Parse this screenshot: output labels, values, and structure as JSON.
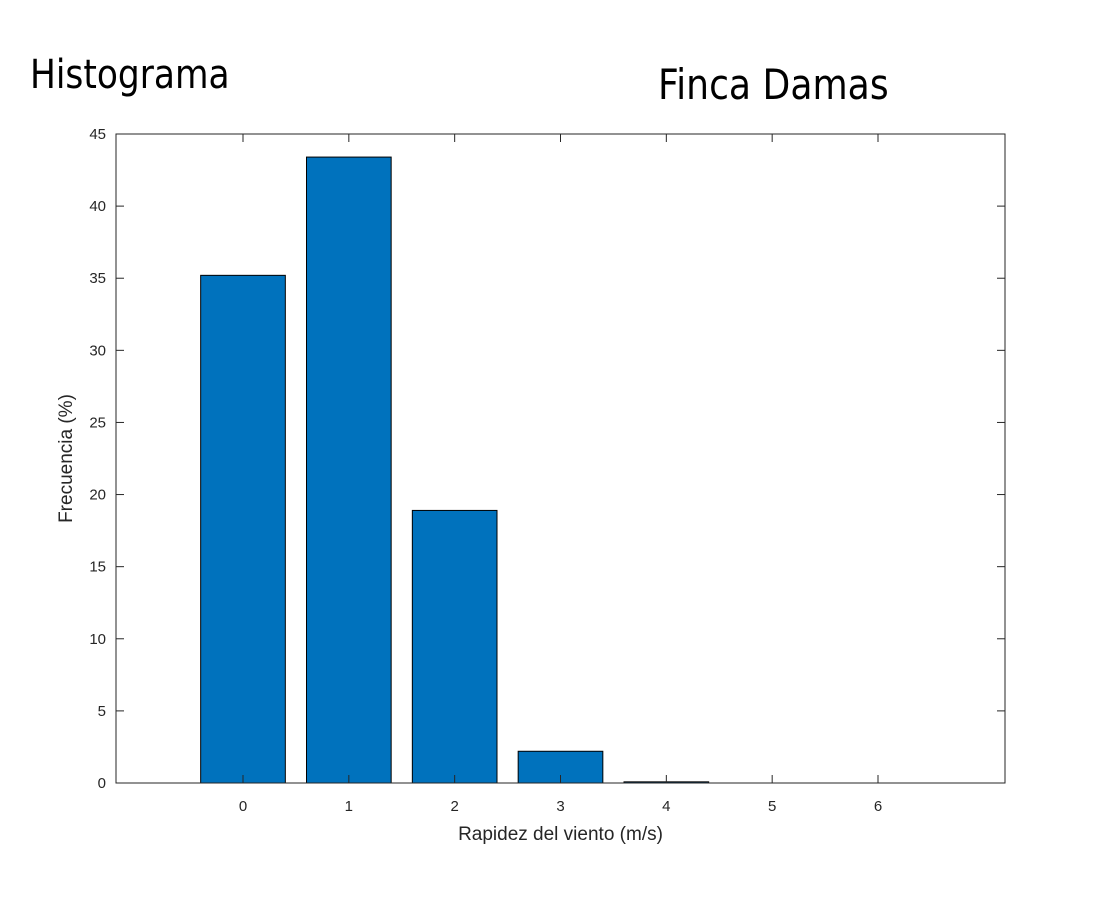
{
  "header": {
    "left_title": "Histograma",
    "right_title": "Finca Damas"
  },
  "chart_data": {
    "type": "bar",
    "title": "",
    "xlabel": "Rapidez del viento (m/s)",
    "ylabel": "Frecuencia (%)",
    "categories": [
      "0",
      "1",
      "2",
      "3",
      "4",
      "5",
      "6"
    ],
    "x": [
      0,
      1,
      2,
      3,
      4,
      5,
      6
    ],
    "values": [
      35.2,
      43.4,
      18.9,
      2.2,
      0.08,
      0,
      0
    ],
    "xlim": [
      -1.2,
      7.2
    ],
    "ylim": [
      0,
      45
    ],
    "yticks": [
      0,
      5,
      10,
      15,
      20,
      25,
      30,
      35,
      40,
      45
    ],
    "grid": false,
    "bar_color": "#0072BD",
    "edge_color": "#000000"
  }
}
